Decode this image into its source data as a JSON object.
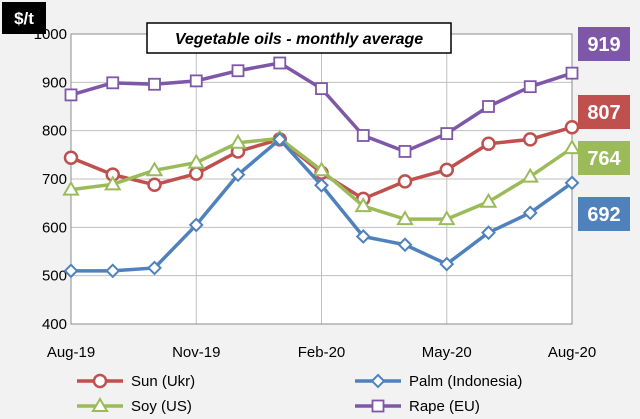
{
  "chart_data": {
    "type": "line",
    "title": "Vegetable oils - monthly average",
    "unit_label": "$/t",
    "xlabel": "",
    "ylabel": "$/t",
    "ylim": [
      400,
      1000
    ],
    "yticks": [
      400,
      500,
      600,
      700,
      800,
      900,
      1000
    ],
    "grid": true,
    "months": [
      "Aug-19",
      "Sep-19",
      "Oct-19",
      "Nov-19",
      "Dec-19",
      "Jan-20",
      "Feb-20",
      "Mar-20",
      "Apr-20",
      "May-20",
      "Jun-20",
      "Jul-20",
      "Aug-20"
    ],
    "xtick_labels": [
      {
        "index": 0,
        "label": "Aug-19"
      },
      {
        "index": 3,
        "label": "Nov-19"
      },
      {
        "index": 6,
        "label": "Feb-20"
      },
      {
        "index": 9,
        "label": "May-20"
      },
      {
        "index": 12,
        "label": "Aug-20"
      }
    ],
    "series": [
      {
        "id": "rape",
        "name": "Rape (EU)",
        "color": "#7e57a8",
        "marker": "square",
        "values": [
          874,
          899,
          896,
          903,
          924,
          940,
          887,
          790,
          757,
          794,
          850,
          891,
          919
        ]
      },
      {
        "id": "sun",
        "name": "Sun (Ukr)",
        "color": "#c0504d",
        "marker": "circle",
        "values": [
          744,
          709,
          688,
          711,
          757,
          782,
          713,
          659,
          695,
          719,
          773,
          782,
          807
        ]
      },
      {
        "id": "soy",
        "name": "Soy (US)",
        "color": "#9bbb59",
        "marker": "triangle",
        "values": [
          678,
          689,
          718,
          734,
          775,
          784,
          718,
          644,
          617,
          617,
          653,
          705,
          764
        ]
      },
      {
        "id": "palm",
        "name": "Palm (Indonesia)",
        "color": "#4f81bd",
        "marker": "diamond",
        "values": [
          510,
          510,
          516,
          605,
          709,
          782,
          687,
          581,
          564,
          524,
          589,
          630,
          692
        ]
      }
    ],
    "end_labels": [
      {
        "series": "rape",
        "text": "919"
      },
      {
        "series": "sun",
        "text": "807"
      },
      {
        "series": "soy",
        "text": "764"
      },
      {
        "series": "palm",
        "text": "692"
      }
    ],
    "legend": {
      "placement": "bottom",
      "order": [
        "sun",
        "palm",
        "soy",
        "rape"
      ]
    }
  }
}
